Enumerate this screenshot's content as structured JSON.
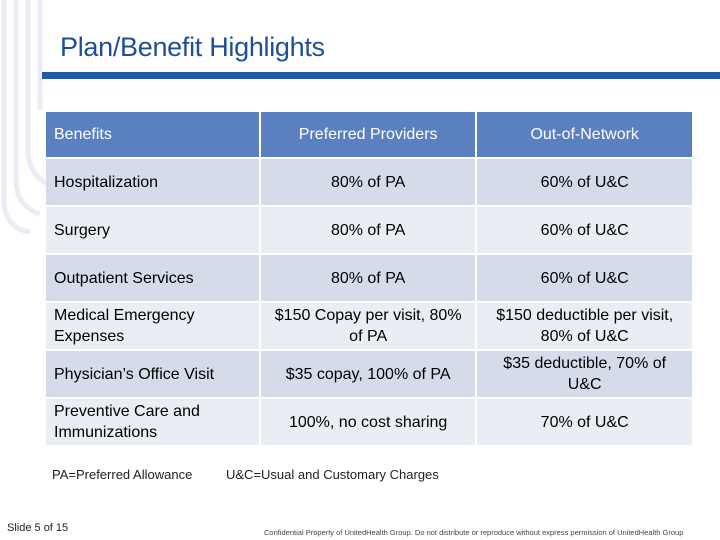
{
  "title": "Plan/Benefit Highlights",
  "colors": {
    "accent": "#1f5aa6",
    "header": "#5b80c0",
    "row": "#d4dcea"
  },
  "table": {
    "headers": [
      "Benefits",
      "Preferred Providers",
      "Out-of-Network"
    ],
    "rows": [
      [
        "Hospitalization",
        "80% of PA",
        "60% of U&C"
      ],
      [
        "Surgery",
        "80% of PA",
        "60% of U&C"
      ],
      [
        "Outpatient Services",
        "80% of PA",
        "60% of U&C"
      ],
      [
        "Medical Emergency Expenses",
        "$150 Copay per visit, 80% of PA",
        "$150 deductible per visit, 80% of U&C"
      ],
      [
        "Physician’s Office Visit",
        "$35 copay, 100% of PA",
        "$35 deductible, 70% of U&C"
      ],
      [
        "Preventive Care and Immunizations",
        "100%, no cost sharing",
        "70% of U&C"
      ]
    ]
  },
  "legend": {
    "pa": "PA=Preferred Allowance",
    "uc": "U&C=Usual and Customary Charges"
  },
  "footer": {
    "slide": "Slide 5 of 15",
    "confidential": "Confidential Property of UnitedHealth Group. Do not distribute or reproduce without express permission of UnitedHealth Group"
  }
}
